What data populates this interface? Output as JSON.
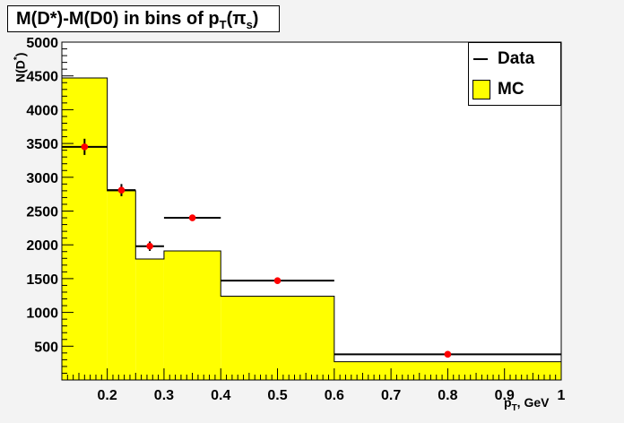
{
  "title": {
    "prefix": "M(D*)-M(D0) in bins of p",
    "sub": "T",
    "mid": "(π",
    "sub2": "s",
    "suffix": ")"
  },
  "legend": {
    "data_label": "Data",
    "mc_label": "MC",
    "position": "top-right"
  },
  "axis": {
    "xlabel_main": "p",
    "xlabel_sub": "T",
    "xlabel_suffix": ", GeV",
    "ylabel_main": "N(D",
    "ylabel_sup": "*",
    "ylabel_suffix": ")"
  },
  "colors": {
    "mc_fill": "#ffff00",
    "data_marker": "#ff0000",
    "frame": "#000000",
    "background": "#f3f3f3"
  },
  "chart_data": {
    "type": "bar",
    "xlim": [
      0.12,
      1.0
    ],
    "ylim": [
      0,
      5000
    ],
    "xticks": [
      0.2,
      0.3,
      0.4,
      0.5,
      0.6,
      0.7,
      0.8,
      0.9,
      1.0
    ],
    "xtick_labels": [
      "0.2",
      "0.3",
      "0.4",
      "0.5",
      "0.6",
      "0.7",
      "0.8",
      "0.9",
      "1"
    ],
    "yticks": [
      500,
      1000,
      1500,
      2000,
      2500,
      3000,
      3500,
      4000,
      4500,
      5000
    ],
    "ytick_labels": [
      "500",
      "1000",
      "1500",
      "2000",
      "2500",
      "3000",
      "3500",
      "4000",
      "4500",
      "5000"
    ],
    "bin_edges": [
      0.12,
      0.2,
      0.25,
      0.3,
      0.4,
      0.6,
      1.0
    ],
    "series": [
      {
        "name": "MC",
        "kind": "histogram",
        "values": [
          4470,
          2800,
          1790,
          1910,
          1240,
          270
        ]
      },
      {
        "name": "Data",
        "kind": "points",
        "x": [
          0.16,
          0.225,
          0.275,
          0.35,
          0.5,
          0.8
        ],
        "y": [
          3450,
          2810,
          1980,
          2400,
          1470,
          380
        ],
        "yerr": [
          120,
          90,
          70,
          40,
          30,
          20
        ]
      }
    ],
    "grid": false
  }
}
